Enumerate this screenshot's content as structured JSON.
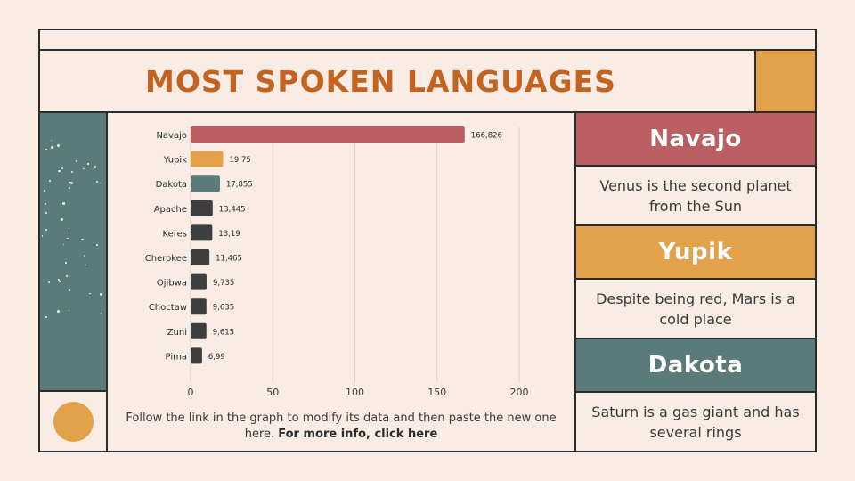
{
  "title": "MOST SPOKEN LANGUAGES",
  "colors": {
    "accent_orange": "#c4631f",
    "mustard": "#e3a24a",
    "rose": "#bc5f62",
    "teal": "#5b7b7a",
    "dark_bar": "#3e3e3e",
    "background": "#f8ece4"
  },
  "chart_data": {
    "type": "bar",
    "orientation": "horizontal",
    "categories": [
      "Navajo",
      "Yupik",
      "Dakota",
      "Apache",
      "Keres",
      "Cherokee",
      "Ojibwa",
      "Choctaw",
      "Zuni",
      "Pima"
    ],
    "values": [
      166.826,
      19.75,
      17.855,
      13.445,
      13.19,
      11.465,
      9.735,
      9.635,
      9.615,
      6.99
    ],
    "value_labels": [
      "166,826",
      "19,75",
      "17,855",
      "13,445",
      "13,19",
      "11,465",
      "9,735",
      "9,635",
      "9,615",
      "6,99"
    ],
    "bar_colors": [
      "#bc5f62",
      "#e3a24a",
      "#5b7b7a",
      "#3e3e3e",
      "#3e3e3e",
      "#3e3e3e",
      "#3e3e3e",
      "#3e3e3e",
      "#3e3e3e",
      "#3e3e3e"
    ],
    "xticks": [
      0,
      50,
      100,
      150,
      200
    ],
    "xlim": [
      0,
      200
    ],
    "grid": true
  },
  "chart_note": {
    "text": "Follow the link in the graph to modify its data and then paste the new one here. ",
    "link": "For more info, click here"
  },
  "cards": [
    {
      "title": "Navajo",
      "text": "Venus is the second planet from the Sun"
    },
    {
      "title": "Yupik",
      "text": "Despite being red, Mars is a cold place"
    },
    {
      "title": "Dakota",
      "text": "Saturn is a gas giant and has several rings"
    }
  ]
}
